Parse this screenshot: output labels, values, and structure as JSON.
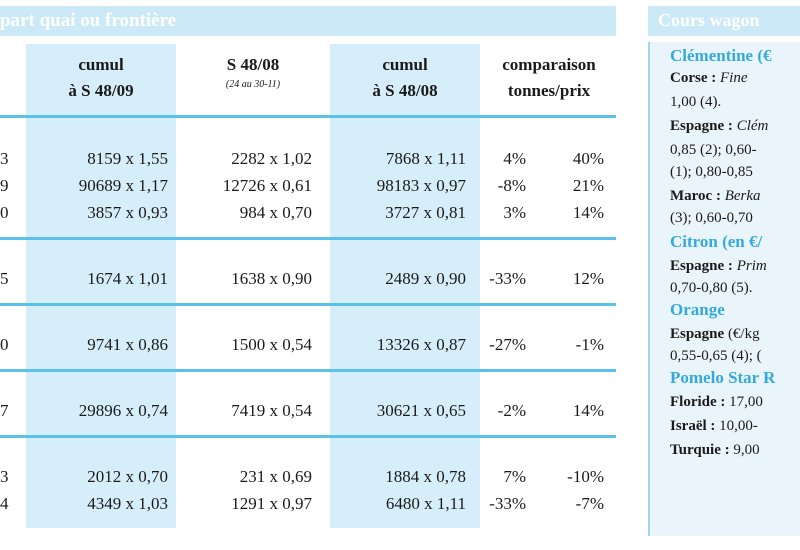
{
  "left_title": "part quai ou frontière",
  "columns": [
    {
      "line1": "cumul",
      "line2": "à S 48/09"
    },
    {
      "line1": "S 48/08",
      "sub": "(24 au 30-11)"
    },
    {
      "line1": "cumul",
      "line2": "à S 48/08"
    },
    {
      "line1": "comparaison",
      "line2": "tonnes/prix"
    }
  ],
  "rows": [
    [
      "3",
      "8159 x 1,55",
      "2282 x 1,02",
      "7868 x 1,11",
      "4%",
      "40%"
    ],
    [
      "9",
      "90689 x 1,17",
      "12726 x 0,61",
      "98183 x 0,97",
      "-8%",
      "21%"
    ],
    [
      "0",
      "3857 x 0,93",
      "984 x 0,70",
      "3727 x 0,81",
      "3%",
      "14%"
    ],
    [
      "5",
      "1674 x 1,01",
      "1638 x 0,90",
      "2489 x 0,90",
      "-33%",
      "12%"
    ],
    [
      "0",
      "9741 x 0,86",
      "1500 x 0,54",
      "13326 x 0,87",
      "-27%",
      "-1%"
    ],
    [
      "7",
      "29896 x 0,74",
      "7419 x 0,54",
      "30621 x 0,65",
      "-2%",
      "14%"
    ],
    [
      "3",
      "2012 x 0,70",
      "231 x 0,69",
      "1884 x 0,78",
      "7%",
      "-10%"
    ],
    [
      "4",
      "4349 x 1,03",
      "1291 x 0,97",
      "6480 x 1,11",
      "-33%",
      "-7%"
    ]
  ],
  "right_title": "Cours wagon",
  "right_lines": [
    {
      "text": "Clémentine (€",
      "style": "cat"
    },
    {
      "bold": "Corse :",
      "rest": " Fine",
      "rest_style": "it"
    },
    {
      "text": "1,00 (4)."
    },
    {
      "bold": "Espagne :",
      "rest": " Clém",
      "rest_style": "it"
    },
    {
      "text": "0,85 (2); 0,60-"
    },
    {
      "text": "(1); 0,80-0,85"
    },
    {
      "bold": "Maroc :",
      "rest": " Berka",
      "rest_style": "it"
    },
    {
      "text": "(3); 0,60-0,70"
    },
    {
      "text": "Citron (en €/",
      "style": "cat"
    },
    {
      "bold": "Espagne :",
      "rest": " Prim",
      "rest_style": "it"
    },
    {
      "text": "0,70-0,80 (5)."
    },
    {
      "text": "Orange",
      "style": "cat"
    },
    {
      "bold": "Espagne",
      "rest": " (€/kg"
    },
    {
      "text": "0,55-0,65 (4); ("
    },
    {
      "text": "Pomelo Star R",
      "style": "cat"
    },
    {
      "bold": "Floride :",
      "rest": " 17,00"
    },
    {
      "bold": "Israël :",
      "rest": " 10,00-"
    },
    {
      "bold": "Turquie :",
      "rest": " 9,00"
    }
  ]
}
